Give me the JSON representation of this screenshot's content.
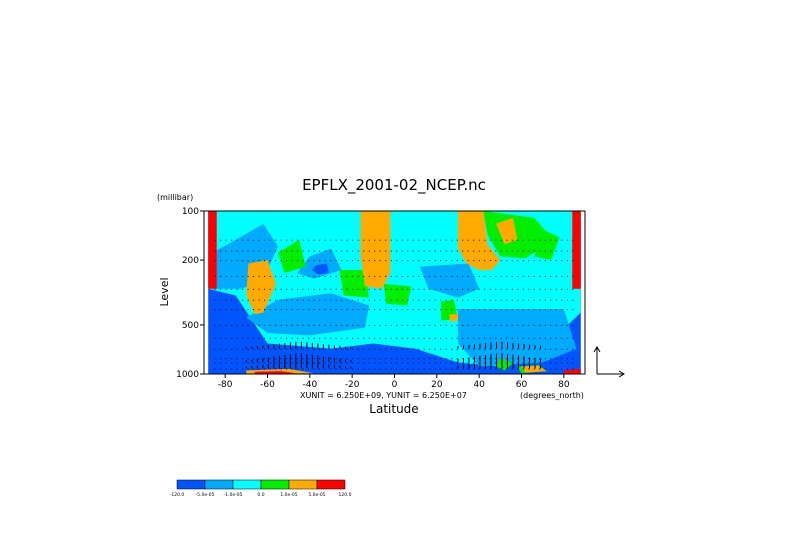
{
  "chart_data": {
    "type": "heatmap",
    "title": "EPFLX_2001-02_NCEP.nc",
    "xlabel": "Latitude",
    "ylabel": "Level",
    "y_unit_label": "(millibar)",
    "x_unit_label": "(degrees_north)",
    "vector_scale_text": "XUNIT = 6.250E+09, YUNIT = 6.250E+07",
    "x_ticks": [
      "-80",
      "-60",
      "-40",
      "-20",
      "0",
      "20",
      "40",
      "60",
      "80"
    ],
    "x_tick_values": [
      -80,
      -60,
      -40,
      -20,
      0,
      20,
      40,
      60,
      80
    ],
    "y_ticks": [
      "100",
      "200",
      "500",
      "1000"
    ],
    "y_tick_values": [
      100,
      200,
      500,
      1000
    ],
    "y_scale": "log",
    "xlim": [
      -90,
      90
    ],
    "ylim": [
      1000,
      100
    ],
    "colorbar": {
      "colors": [
        "#0055ff",
        "#00aaff",
        "#00ffff",
        "#00ee00",
        "#ffaa00",
        "#ff0000"
      ],
      "labels": [
        "-120.0",
        "-5.0e-05",
        "-1.0e-05",
        "0.0",
        "1.0e-05",
        "5.0e-05",
        "120.0"
      ]
    },
    "field_regions": [
      {
        "level": 0,
        "pts": [
          [
            -88,
            100
          ],
          [
            88,
            100
          ],
          [
            88,
            1000
          ],
          [
            -88,
            1000
          ]
        ]
      },
      {
        "level": 2,
        "pts": [
          [
            -88,
            100
          ],
          [
            88,
            100
          ],
          [
            88,
            420
          ],
          [
            70,
            700
          ],
          [
            50,
            900
          ],
          [
            30,
            850
          ],
          [
            10,
            700
          ],
          [
            -10,
            650
          ],
          [
            -30,
            700
          ],
          [
            -60,
            650
          ],
          [
            -75,
            330
          ],
          [
            -88,
            300
          ]
        ]
      },
      {
        "level": 1,
        "pts": [
          [
            -86,
            180
          ],
          [
            -75,
            150
          ],
          [
            -62,
            120
          ],
          [
            -55,
            165
          ],
          [
            -62,
            260
          ],
          [
            -72,
            300
          ],
          [
            -86,
            300
          ]
        ]
      },
      {
        "level": 1,
        "pts": [
          [
            -55,
            350
          ],
          [
            -30,
            320
          ],
          [
            -12,
            380
          ],
          [
            -14,
            520
          ],
          [
            -40,
            580
          ],
          [
            -60,
            560
          ],
          [
            -70,
            450
          ]
        ]
      },
      {
        "level": 1,
        "pts": [
          [
            -40,
            190
          ],
          [
            -30,
            170
          ],
          [
            -25,
            230
          ],
          [
            -38,
            260
          ],
          [
            -46,
            240
          ]
        ]
      },
      {
        "level": 0,
        "pts": [
          [
            -37,
            215
          ],
          [
            -32,
            210
          ],
          [
            -31,
            240
          ],
          [
            -36,
            245
          ],
          [
            -39,
            230
          ]
        ]
      },
      {
        "level": 1,
        "pts": [
          [
            12,
            220
          ],
          [
            35,
            210
          ],
          [
            40,
            300
          ],
          [
            30,
            340
          ],
          [
            16,
            300
          ]
        ]
      },
      {
        "level": 1,
        "pts": [
          [
            30,
            400
          ],
          [
            80,
            400
          ],
          [
            86,
            700
          ],
          [
            70,
            850
          ],
          [
            40,
            900
          ],
          [
            30,
            650
          ]
        ]
      },
      {
        "level": 3,
        "pts": [
          [
            -55,
            180
          ],
          [
            -45,
            150
          ],
          [
            -42,
            220
          ],
          [
            -52,
            240
          ]
        ]
      },
      {
        "level": 3,
        "pts": [
          [
            -26,
            230
          ],
          [
            -14,
            230
          ],
          [
            -12,
            340
          ],
          [
            -24,
            330
          ]
        ]
      },
      {
        "level": 3,
        "pts": [
          [
            -5,
            280
          ],
          [
            8,
            290
          ],
          [
            6,
            380
          ],
          [
            -4,
            370
          ]
        ]
      },
      {
        "level": 3,
        "pts": [
          [
            22,
            360
          ],
          [
            28,
            350
          ],
          [
            30,
            460
          ],
          [
            22,
            470
          ]
        ]
      },
      {
        "level": 3,
        "pts": [
          [
            42,
            100
          ],
          [
            66,
            110
          ],
          [
            75,
            150
          ],
          [
            62,
            195
          ],
          [
            50,
            190
          ],
          [
            44,
            140
          ]
        ]
      },
      {
        "level": 3,
        "pts": [
          [
            70,
            130
          ],
          [
            78,
            145
          ],
          [
            74,
            200
          ],
          [
            66,
            190
          ]
        ]
      },
      {
        "level": 3,
        "pts": [
          [
            50,
            800
          ],
          [
            56,
            860
          ],
          [
            52,
            950
          ],
          [
            48,
            900
          ]
        ]
      },
      {
        "level": 3,
        "pts": [
          [
            58,
            900
          ],
          [
            68,
            880
          ],
          [
            72,
            960
          ],
          [
            60,
            990
          ]
        ]
      },
      {
        "level": 4,
        "pts": [
          [
            -69,
            210
          ],
          [
            -60,
            200
          ],
          [
            -56,
            280
          ],
          [
            -62,
            420
          ],
          [
            -66,
            430
          ],
          [
            -70,
            330
          ]
        ]
      },
      {
        "level": 4,
        "pts": [
          [
            -16,
            100
          ],
          [
            -2,
            100
          ],
          [
            -2,
            240
          ],
          [
            -6,
            300
          ],
          [
            -14,
            290
          ],
          [
            -16,
            190
          ]
        ]
      },
      {
        "level": 4,
        "pts": [
          [
            30,
            100
          ],
          [
            42,
            100
          ],
          [
            44,
            160
          ],
          [
            50,
            200
          ],
          [
            46,
            230
          ],
          [
            40,
            230
          ],
          [
            34,
            210
          ],
          [
            30,
            170
          ]
        ]
      },
      {
        "level": 4,
        "pts": [
          [
            48,
            120
          ],
          [
            56,
            110
          ],
          [
            58,
            150
          ],
          [
            52,
            160
          ]
        ]
      },
      {
        "level": 4,
        "pts": [
          [
            26,
            430
          ],
          [
            30,
            430
          ],
          [
            30,
            470
          ],
          [
            26,
            475
          ]
        ]
      },
      {
        "level": 4,
        "pts": [
          [
            -70,
            950
          ],
          [
            -50,
            930
          ],
          [
            -38,
            990
          ],
          [
            -70,
            1000
          ]
        ]
      },
      {
        "level": 4,
        "pts": [
          [
            60,
            900
          ],
          [
            68,
            890
          ],
          [
            72,
            960
          ],
          [
            62,
            980
          ]
        ]
      },
      {
        "level": 5,
        "pts": [
          [
            -66,
            970
          ],
          [
            -54,
            960
          ],
          [
            -46,
            990
          ],
          [
            -66,
            1000
          ]
        ]
      },
      {
        "level": 5,
        "pts": [
          [
            -88,
            100
          ],
          [
            -84,
            100
          ],
          [
            -84,
            300
          ],
          [
            -88,
            300
          ]
        ]
      },
      {
        "level": 5,
        "pts": [
          [
            84,
            100
          ],
          [
            88,
            100
          ],
          [
            88,
            300
          ],
          [
            84,
            300
          ]
        ]
      },
      {
        "level": 5,
        "pts": [
          [
            80,
            950
          ],
          [
            88,
            930
          ],
          [
            88,
            1000
          ],
          [
            80,
            1000
          ]
        ]
      }
    ]
  }
}
